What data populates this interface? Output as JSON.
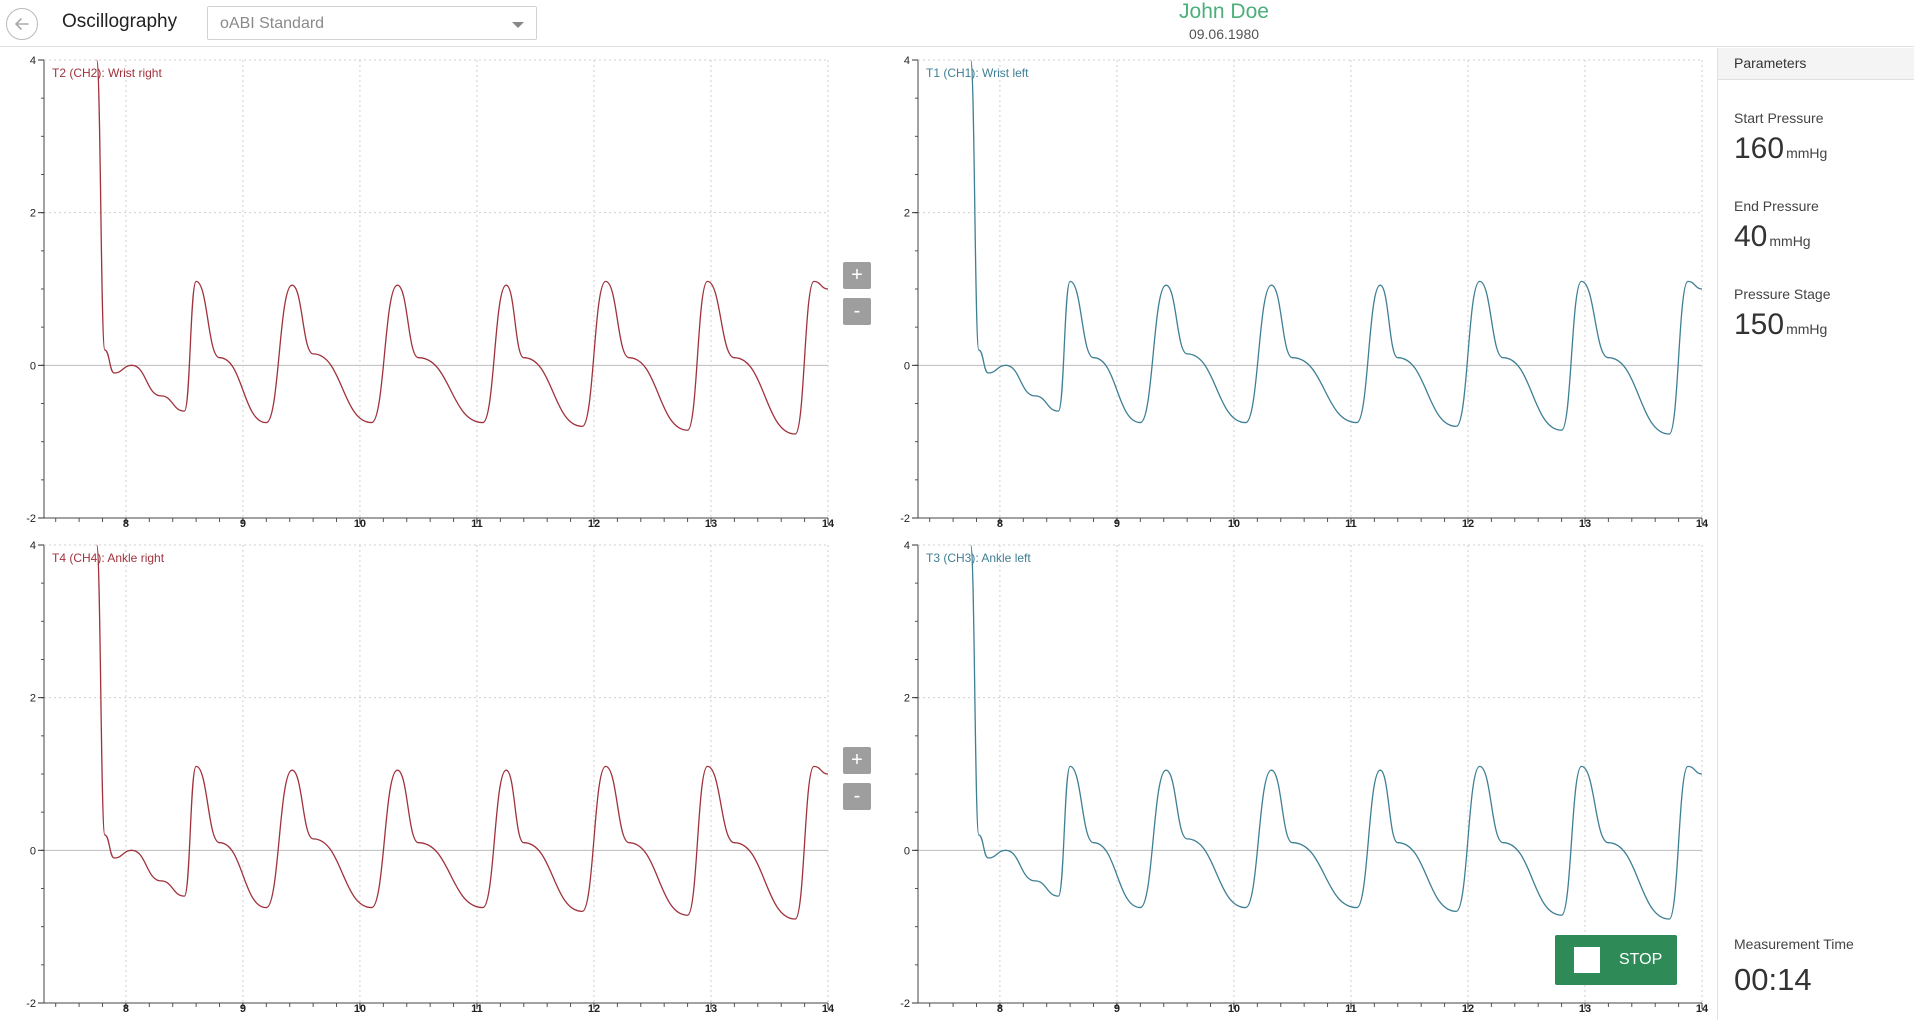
{
  "header": {
    "app_title": "Oscillography",
    "protocol_value": "oABI Standard",
    "patient_name": "John Doe",
    "patient_dob": "09.06.1980"
  },
  "colors": {
    "red_trace": "#a0323c",
    "blue_trace": "#3f7f94",
    "accent": "#2e8b57",
    "name": "#4caf7a"
  },
  "zoom": {
    "plus": "+",
    "minus": "-"
  },
  "panel": {
    "title": "Parameters",
    "params": [
      {
        "label": "Start Pressure",
        "value": "160",
        "unit": "mmHg"
      },
      {
        "label": "End Pressure",
        "value": "40",
        "unit": "mmHg"
      },
      {
        "label": "Pressure Stage",
        "value": "150",
        "unit": "mmHg"
      }
    ],
    "measurement_time_label": "Measurement Time",
    "measurement_time_value": "00:14"
  },
  "stop_label": "STOP",
  "chart_data": [
    {
      "type": "line",
      "title": "T2 (CH2): Wrist right",
      "color": "red",
      "xlim": [
        7.3,
        14
      ],
      "ylim": [
        -2,
        4
      ],
      "xticks": [
        8,
        9,
        10,
        11,
        12,
        13,
        14
      ],
      "yticks": [
        -2,
        0,
        2,
        4
      ],
      "grid": true,
      "series": [
        {
          "x": [
            7.75,
            7.82,
            7.9,
            8.05,
            8.3,
            8.5,
            8.6,
            8.8,
            9.2,
            9.42,
            9.6,
            10.1,
            10.32,
            10.5,
            11.05,
            11.25,
            11.4,
            11.9,
            12.1,
            12.3,
            12.8,
            12.97,
            13.2,
            13.72,
            13.88,
            14.0
          ],
          "y": [
            4.0,
            0.2,
            -0.1,
            0.0,
            -0.4,
            -0.6,
            1.1,
            0.1,
            -0.75,
            1.05,
            0.15,
            -0.75,
            1.05,
            0.1,
            -0.75,
            1.05,
            0.1,
            -0.8,
            1.1,
            0.1,
            -0.85,
            1.1,
            0.1,
            -0.9,
            1.1,
            1.0
          ]
        }
      ]
    },
    {
      "type": "line",
      "title": "T1 (CH1): Wrist left",
      "color": "blue",
      "xlim": [
        7.3,
        14
      ],
      "ylim": [
        -2,
        4
      ],
      "xticks": [
        8,
        9,
        10,
        11,
        12,
        13,
        14
      ],
      "yticks": [
        -2,
        0,
        2,
        4
      ],
      "grid": true,
      "series": [
        {
          "x": [
            7.75,
            7.82,
            7.9,
            8.05,
            8.3,
            8.5,
            8.6,
            8.8,
            9.2,
            9.42,
            9.6,
            10.1,
            10.32,
            10.5,
            11.05,
            11.25,
            11.4,
            11.9,
            12.1,
            12.3,
            12.8,
            12.97,
            13.2,
            13.72,
            13.88,
            14.0
          ],
          "y": [
            4.0,
            0.2,
            -0.1,
            0.0,
            -0.4,
            -0.6,
            1.1,
            0.1,
            -0.75,
            1.05,
            0.15,
            -0.75,
            1.05,
            0.1,
            -0.75,
            1.05,
            0.1,
            -0.8,
            1.1,
            0.1,
            -0.85,
            1.1,
            0.1,
            -0.9,
            1.1,
            1.0
          ]
        }
      ]
    },
    {
      "type": "line",
      "title": "T4 (CH4): Ankle right",
      "color": "red",
      "xlim": [
        7.3,
        14
      ],
      "ylim": [
        -2,
        4
      ],
      "xticks": [
        8,
        9,
        10,
        11,
        12,
        13,
        14
      ],
      "yticks": [
        -2,
        0,
        2,
        4
      ],
      "grid": true,
      "series": [
        {
          "x": [
            7.75,
            7.82,
            7.9,
            8.05,
            8.3,
            8.5,
            8.6,
            8.8,
            9.2,
            9.42,
            9.6,
            10.1,
            10.32,
            10.5,
            11.05,
            11.25,
            11.4,
            11.9,
            12.1,
            12.3,
            12.8,
            12.97,
            13.2,
            13.72,
            13.88,
            14.0
          ],
          "y": [
            4.0,
            0.2,
            -0.1,
            0.0,
            -0.4,
            -0.6,
            1.1,
            0.1,
            -0.75,
            1.05,
            0.15,
            -0.75,
            1.05,
            0.1,
            -0.75,
            1.05,
            0.1,
            -0.8,
            1.1,
            0.1,
            -0.85,
            1.1,
            0.1,
            -0.9,
            1.1,
            1.0
          ]
        }
      ]
    },
    {
      "type": "line",
      "title": "T3 (CH3): Ankle left",
      "color": "blue",
      "xlim": [
        7.3,
        14
      ],
      "ylim": [
        -2,
        4
      ],
      "xticks": [
        8,
        9,
        10,
        11,
        12,
        13,
        14
      ],
      "yticks": [
        -2,
        0,
        2,
        4
      ],
      "grid": true,
      "series": [
        {
          "x": [
            7.75,
            7.82,
            7.9,
            8.05,
            8.3,
            8.5,
            8.6,
            8.8,
            9.2,
            9.42,
            9.6,
            10.1,
            10.32,
            10.5,
            11.05,
            11.25,
            11.4,
            11.9,
            12.1,
            12.3,
            12.8,
            12.97,
            13.2,
            13.72,
            13.88,
            14.0
          ],
          "y": [
            4.0,
            0.2,
            -0.1,
            0.0,
            -0.4,
            -0.6,
            1.1,
            0.1,
            -0.75,
            1.05,
            0.15,
            -0.75,
            1.05,
            0.1,
            -0.75,
            1.05,
            0.1,
            -0.8,
            1.1,
            0.1,
            -0.85,
            1.1,
            0.1,
            -0.9,
            1.1,
            1.0
          ]
        }
      ]
    }
  ]
}
